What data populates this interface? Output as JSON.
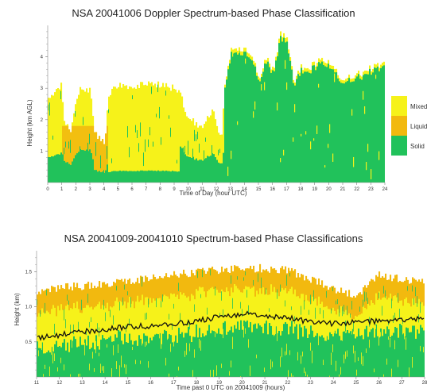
{
  "chart_data": [
    {
      "type": "heatmap",
      "title": "NSA 20041006 Doppler Spectrum-based Phase Classification",
      "xlabel": "Time of Day (hour UTC)",
      "ylabel": "Height (km AGL)",
      "xlim": [
        0,
        24
      ],
      "ylim": [
        0,
        5
      ],
      "x_ticks": [
        0,
        1,
        2,
        3,
        4,
        5,
        6,
        7,
        8,
        9,
        10,
        11,
        12,
        13,
        14,
        15,
        16,
        17,
        18,
        19,
        20,
        21,
        22,
        23,
        24
      ],
      "y_ticks": [
        1,
        2,
        3,
        4
      ],
      "legend": [
        {
          "name": "Mixed",
          "color": "#f6f21a"
        },
        {
          "name": "Liquid",
          "color": "#f2b90f"
        },
        {
          "name": "Solid",
          "color": "#21c25b"
        }
      ],
      "legend_position": "right",
      "cloud_top_km": [
        [
          0.1,
          2.7
        ],
        [
          0.9,
          3.1
        ],
        [
          1.1,
          2.0
        ],
        [
          1.6,
          1.7
        ],
        [
          2.0,
          2.6
        ],
        [
          2.2,
          3.0
        ],
        [
          3.0,
          2.9
        ],
        [
          3.3,
          1.6
        ],
        [
          4.0,
          1.3
        ],
        [
          4.3,
          2.8
        ],
        [
          4.7,
          3.1
        ],
        [
          6.0,
          3.1
        ],
        [
          7.0,
          3.1
        ],
        [
          8.0,
          3.1
        ],
        [
          9.0,
          3.0
        ],
        [
          9.4,
          2.9
        ],
        [
          9.7,
          2.3
        ],
        [
          10.2,
          2.0
        ],
        [
          10.7,
          1.7
        ],
        [
          11.3,
          2.0
        ],
        [
          11.7,
          2.4
        ],
        [
          12.0,
          1.8
        ],
        [
          12.3,
          1.4
        ],
        [
          12.6,
          3.3
        ],
        [
          13.0,
          4.2
        ],
        [
          14.0,
          4.3
        ],
        [
          14.5,
          4.1
        ],
        [
          15.0,
          3.2
        ],
        [
          15.5,
          4.0
        ],
        [
          16.0,
          3.6
        ],
        [
          16.5,
          4.7
        ],
        [
          17.0,
          4.6
        ],
        [
          17.5,
          3.2
        ],
        [
          18.0,
          3.7
        ],
        [
          18.7,
          3.7
        ],
        [
          19.5,
          3.9
        ],
        [
          20.0,
          3.8
        ],
        [
          20.8,
          3.3
        ],
        [
          21.5,
          3.4
        ],
        [
          22.5,
          3.5
        ],
        [
          23.2,
          3.7
        ],
        [
          24.0,
          3.8
        ]
      ]
    },
    {
      "type": "heatmap",
      "title": "NSA 20041009-20041010 Spectrum-based Phase Classifications",
      "xlabel": "Time past 0 UTC on 20041009 (hours)",
      "ylabel": "Height (km)",
      "xlim": [
        11,
        28
      ],
      "ylim": [
        0,
        1.8
      ],
      "x_ticks": [
        11,
        12,
        13,
        14,
        15,
        16,
        17,
        18,
        19,
        20,
        21,
        22,
        23,
        24,
        25,
        26,
        27,
        28
      ],
      "y_ticks": [
        0.5,
        1.0,
        1.5
      ],
      "cloud_top_km": [
        [
          11,
          1.22
        ],
        [
          12,
          1.28
        ],
        [
          13,
          1.3
        ],
        [
          14,
          1.32
        ],
        [
          15,
          1.38
        ],
        [
          16,
          1.4
        ],
        [
          17,
          1.45
        ],
        [
          18,
          1.5
        ],
        [
          19,
          1.52
        ],
        [
          20,
          1.55
        ],
        [
          21,
          1.55
        ],
        [
          22,
          1.52
        ],
        [
          23,
          1.4
        ],
        [
          24,
          1.25
        ],
        [
          25,
          1.15
        ],
        [
          25.5,
          1.35
        ],
        [
          26,
          1.45
        ],
        [
          27,
          1.4
        ],
        [
          28,
          1.35
        ]
      ],
      "black_line_km": [
        [
          11,
          0.55
        ],
        [
          12,
          0.6
        ],
        [
          13,
          0.65
        ],
        [
          14,
          0.68
        ],
        [
          15,
          0.72
        ],
        [
          16,
          0.73
        ],
        [
          17,
          0.76
        ],
        [
          18,
          0.8
        ],
        [
          19,
          0.86
        ],
        [
          20,
          0.9
        ],
        [
          21,
          0.88
        ],
        [
          22,
          0.84
        ],
        [
          23,
          0.78
        ],
        [
          24,
          0.76
        ],
        [
          25,
          0.78
        ],
        [
          26,
          0.8
        ],
        [
          27,
          0.82
        ],
        [
          28,
          0.84
        ]
      ]
    }
  ]
}
